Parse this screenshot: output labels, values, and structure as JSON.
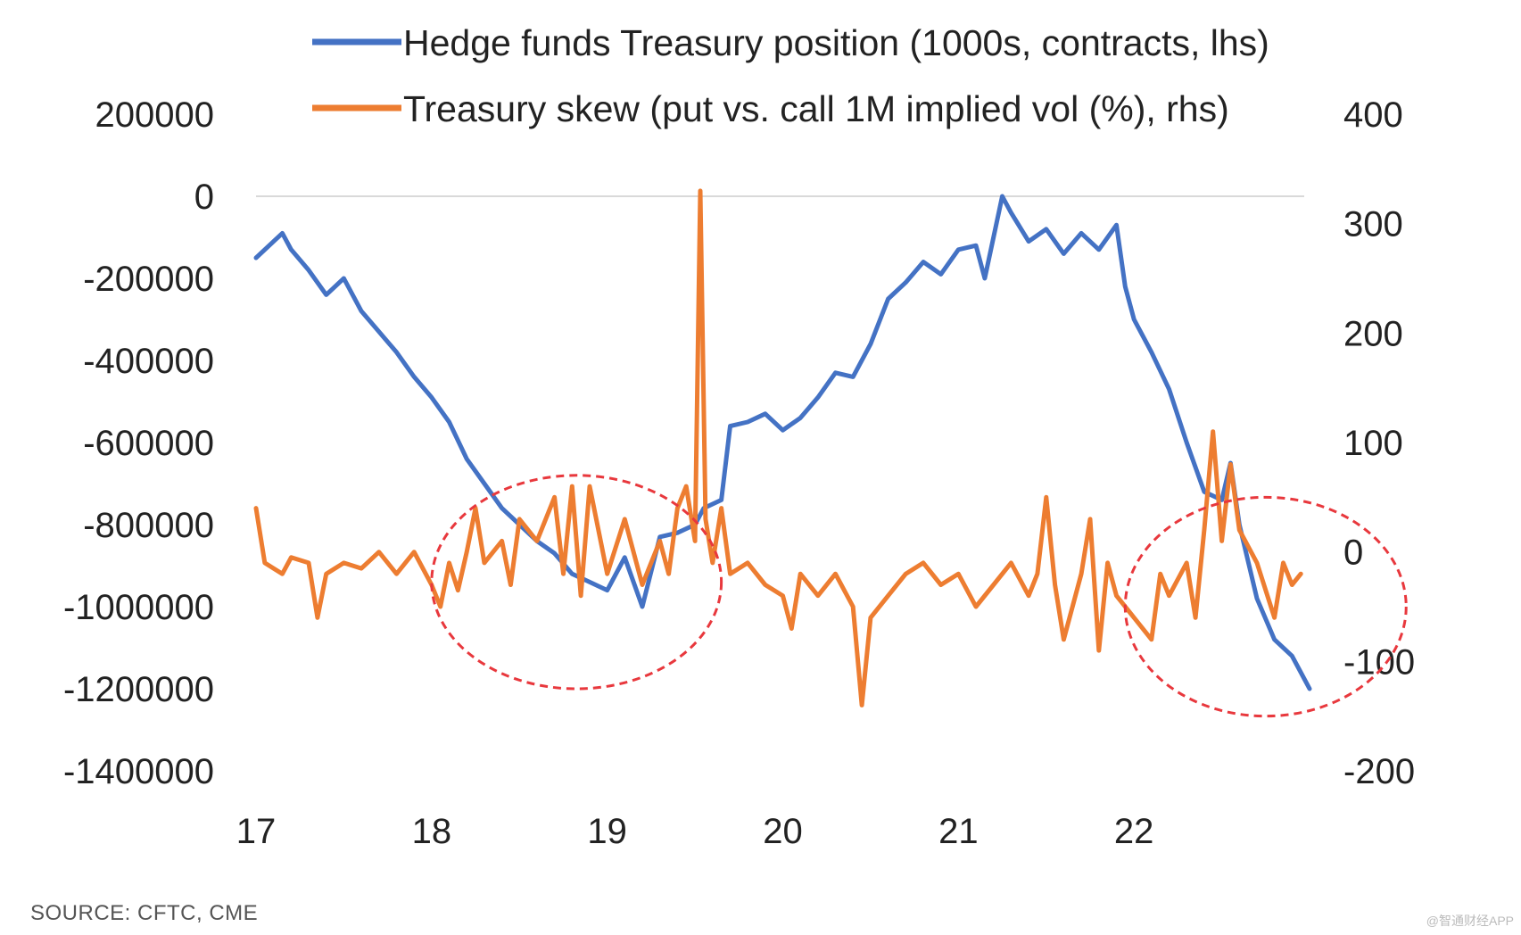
{
  "chart_data": {
    "type": "line",
    "title": "",
    "x_tick_labels": [
      "17",
      "18",
      "19",
      "20",
      "21",
      "22"
    ],
    "x_range": [
      2017.0,
      2023.0
    ],
    "y_left": {
      "ticks": [
        200000,
        0,
        -200000,
        -400000,
        -600000,
        -800000,
        -1000000,
        -1200000,
        -1400000
      ],
      "tick_labels": [
        "200000",
        "0",
        "-200000",
        "-400000",
        "-600000",
        "-800000",
        "-1000000",
        "-1200000",
        "-1400000"
      ],
      "range": [
        -1400000,
        200000
      ]
    },
    "y_right": {
      "ticks": [
        400,
        300,
        200,
        100,
        0,
        -100,
        -200
      ],
      "tick_labels": [
        "400",
        "300",
        "200",
        "100",
        "0",
        "-100",
        "-200"
      ],
      "range": [
        -200,
        400
      ]
    },
    "series": [
      {
        "name": "Hedge funds Treasury position (1000s, contracts, lhs)",
        "axis": "left",
        "color": "#4472C4",
        "points": [
          [
            2017.0,
            -150000
          ],
          [
            2017.1,
            -110000
          ],
          [
            2017.15,
            -90000
          ],
          [
            2017.2,
            -130000
          ],
          [
            2017.3,
            -180000
          ],
          [
            2017.4,
            -240000
          ],
          [
            2017.5,
            -200000
          ],
          [
            2017.6,
            -280000
          ],
          [
            2017.7,
            -330000
          ],
          [
            2017.8,
            -380000
          ],
          [
            2017.9,
            -440000
          ],
          [
            2018.0,
            -490000
          ],
          [
            2018.1,
            -550000
          ],
          [
            2018.2,
            -640000
          ],
          [
            2018.3,
            -700000
          ],
          [
            2018.4,
            -760000
          ],
          [
            2018.5,
            -800000
          ],
          [
            2018.6,
            -840000
          ],
          [
            2018.7,
            -870000
          ],
          [
            2018.8,
            -920000
          ],
          [
            2018.9,
            -940000
          ],
          [
            2019.0,
            -960000
          ],
          [
            2019.1,
            -880000
          ],
          [
            2019.2,
            -1000000
          ],
          [
            2019.3,
            -830000
          ],
          [
            2019.4,
            -820000
          ],
          [
            2019.5,
            -800000
          ],
          [
            2019.55,
            -760000
          ],
          [
            2019.65,
            -740000
          ],
          [
            2019.7,
            -560000
          ],
          [
            2019.8,
            -550000
          ],
          [
            2019.9,
            -530000
          ],
          [
            2020.0,
            -570000
          ],
          [
            2020.1,
            -540000
          ],
          [
            2020.2,
            -490000
          ],
          [
            2020.3,
            -430000
          ],
          [
            2020.4,
            -440000
          ],
          [
            2020.5,
            -360000
          ],
          [
            2020.6,
            -250000
          ],
          [
            2020.7,
            -210000
          ],
          [
            2020.8,
            -160000
          ],
          [
            2020.9,
            -190000
          ],
          [
            2021.0,
            -130000
          ],
          [
            2021.1,
            -120000
          ],
          [
            2021.15,
            -200000
          ],
          [
            2021.25,
            0
          ],
          [
            2021.3,
            -40000
          ],
          [
            2021.4,
            -110000
          ],
          [
            2021.5,
            -80000
          ],
          [
            2021.6,
            -140000
          ],
          [
            2021.7,
            -90000
          ],
          [
            2021.8,
            -130000
          ],
          [
            2021.9,
            -70000
          ],
          [
            2021.95,
            -220000
          ],
          [
            2022.0,
            -300000
          ],
          [
            2022.1,
            -380000
          ],
          [
            2022.2,
            -470000
          ],
          [
            2022.3,
            -600000
          ],
          [
            2022.4,
            -720000
          ],
          [
            2022.5,
            -740000
          ],
          [
            2022.55,
            -650000
          ],
          [
            2022.6,
            -800000
          ],
          [
            2022.7,
            -980000
          ],
          [
            2022.8,
            -1080000
          ],
          [
            2022.9,
            -1120000
          ],
          [
            2023.0,
            -1200000
          ]
        ]
      },
      {
        "name": "Treasury skew (put vs. call 1M implied vol (%), rhs)",
        "axis": "right",
        "color": "#ED7D31",
        "points": [
          [
            2017.0,
            40
          ],
          [
            2017.05,
            -10
          ],
          [
            2017.1,
            -15
          ],
          [
            2017.15,
            -20
          ],
          [
            2017.2,
            -5
          ],
          [
            2017.3,
            -10
          ],
          [
            2017.35,
            -60
          ],
          [
            2017.4,
            -20
          ],
          [
            2017.5,
            -10
          ],
          [
            2017.6,
            -15
          ],
          [
            2017.7,
            0
          ],
          [
            2017.8,
            -20
          ],
          [
            2017.9,
            0
          ],
          [
            2018.0,
            -30
          ],
          [
            2018.05,
            -50
          ],
          [
            2018.1,
            -10
          ],
          [
            2018.15,
            -35
          ],
          [
            2018.2,
            0
          ],
          [
            2018.25,
            40
          ],
          [
            2018.3,
            -10
          ],
          [
            2018.4,
            10
          ],
          [
            2018.45,
            -30
          ],
          [
            2018.5,
            30
          ],
          [
            2018.6,
            10
          ],
          [
            2018.7,
            50
          ],
          [
            2018.75,
            -20
          ],
          [
            2018.8,
            60
          ],
          [
            2018.85,
            -40
          ],
          [
            2018.9,
            60
          ],
          [
            2019.0,
            -20
          ],
          [
            2019.1,
            30
          ],
          [
            2019.2,
            -30
          ],
          [
            2019.3,
            10
          ],
          [
            2019.35,
            -20
          ],
          [
            2019.4,
            40
          ],
          [
            2019.45,
            60
          ],
          [
            2019.5,
            10
          ],
          [
            2019.53,
            330
          ],
          [
            2019.56,
            30
          ],
          [
            2019.6,
            -10
          ],
          [
            2019.65,
            40
          ],
          [
            2019.7,
            -20
          ],
          [
            2019.8,
            -10
          ],
          [
            2019.9,
            -30
          ],
          [
            2020.0,
            -40
          ],
          [
            2020.05,
            -70
          ],
          [
            2020.1,
            -20
          ],
          [
            2020.2,
            -40
          ],
          [
            2020.3,
            -20
          ],
          [
            2020.4,
            -50
          ],
          [
            2020.45,
            -140
          ],
          [
            2020.5,
            -60
          ],
          [
            2020.6,
            -40
          ],
          [
            2020.7,
            -20
          ],
          [
            2020.8,
            -10
          ],
          [
            2020.9,
            -30
          ],
          [
            2021.0,
            -20
          ],
          [
            2021.1,
            -50
          ],
          [
            2021.2,
            -30
          ],
          [
            2021.3,
            -10
          ],
          [
            2021.4,
            -40
          ],
          [
            2021.45,
            -20
          ],
          [
            2021.5,
            50
          ],
          [
            2021.55,
            -30
          ],
          [
            2021.6,
            -80
          ],
          [
            2021.7,
            -20
          ],
          [
            2021.75,
            30
          ],
          [
            2021.8,
            -90
          ],
          [
            2021.85,
            -10
          ],
          [
            2021.9,
            -40
          ],
          [
            2022.0,
            -60
          ],
          [
            2022.1,
            -80
          ],
          [
            2022.15,
            -20
          ],
          [
            2022.2,
            -40
          ],
          [
            2022.3,
            -10
          ],
          [
            2022.35,
            -60
          ],
          [
            2022.4,
            20
          ],
          [
            2022.45,
            110
          ],
          [
            2022.5,
            10
          ],
          [
            2022.55,
            80
          ],
          [
            2022.6,
            20
          ],
          [
            2022.7,
            -10
          ],
          [
            2022.8,
            -60
          ],
          [
            2022.85,
            -10
          ],
          [
            2022.9,
            -30
          ],
          [
            2022.95,
            -20
          ]
        ]
      }
    ],
    "legend": {
      "placement": "top",
      "entries": [
        "Hedge funds Treasury position (1000s, contracts, lhs)",
        "Treasury skew (put vs. call 1M implied vol (%), rhs)"
      ]
    },
    "annotations": [
      {
        "type": "dashed-ellipse",
        "color": "#E8383D",
        "x_range": [
          2018.0,
          2019.65
        ],
        "y_right_range": [
          -125,
          70
        ]
      },
      {
        "type": "dashed-ellipse",
        "color": "#E8383D",
        "x_range": [
          2021.95,
          2023.55
        ],
        "y_right_range": [
          -150,
          50
        ]
      }
    ],
    "grid": "horizontal zero line only"
  },
  "source": "SOURCE: CFTC, CME",
  "watermark": "@智通财经APP"
}
